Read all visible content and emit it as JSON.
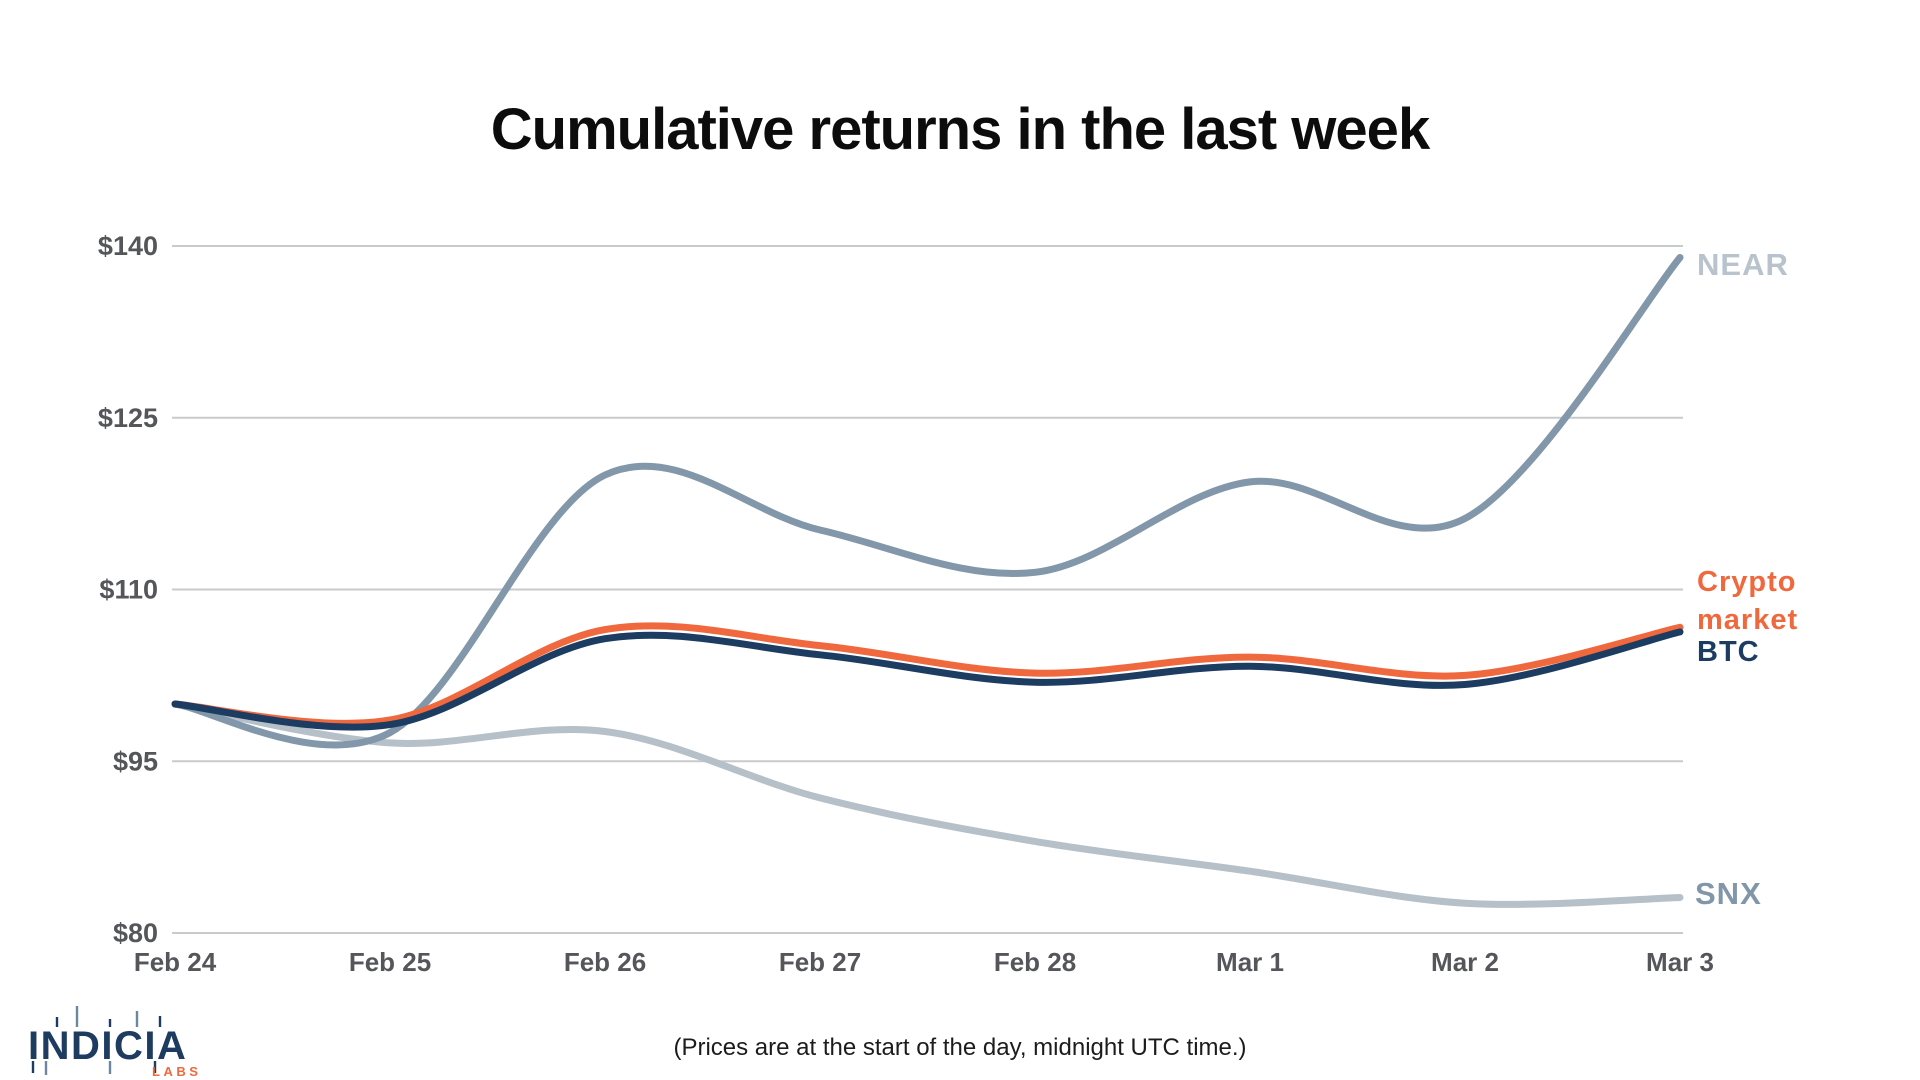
{
  "title": "Cumulative returns in the last week",
  "footnote": "(Prices are at the start of the day, midnight UTC time.)",
  "logo": {
    "name": "INDICIA",
    "sub": "LABS"
  },
  "colors": {
    "grid": "#c9cacb",
    "axis_text": "#55565a",
    "title_text": "#0c0c0d",
    "logo_navy": "#1e3b60",
    "logo_orange": "#ee6a3e"
  },
  "chart_data": {
    "type": "line",
    "x": [
      "Feb 24",
      "Feb 25",
      "Feb 26",
      "Feb 27",
      "Feb 28",
      "Mar 1",
      "Mar 2",
      "Mar 3"
    ],
    "yticks": [
      80,
      95,
      110,
      125,
      140
    ],
    "ytick_labels": [
      "$80",
      "$95",
      "$110",
      "$125",
      "$140"
    ],
    "ylim": [
      80,
      140
    ],
    "grid": true,
    "legend_position": "right-of-line-ends",
    "smoothing": "spline",
    "series": [
      {
        "name": "SNX",
        "color": "#b6c0c9",
        "label_color": "#8197a9",
        "values": [
          100,
          96.6,
          97.6,
          91.8,
          88.0,
          85.4,
          82.6,
          83.1
        ]
      },
      {
        "name": "NEAR",
        "color": "#8297aa",
        "label_color": "#b8c3ce",
        "values": [
          100,
          97.5,
          120.0,
          115.2,
          111.5,
          119.4,
          116.2,
          139.0
        ]
      },
      {
        "name": "Crypto market",
        "color": "#f0693e",
        "label_color": "#f0693e",
        "values": [
          100,
          98.6,
          106.5,
          105.1,
          102.7,
          104.1,
          102.5,
          106.7
        ]
      },
      {
        "name": "BTC",
        "color": "#1d3c61",
        "label_color": "#1d3c61",
        "values": [
          100,
          98.2,
          105.7,
          104.3,
          101.9,
          103.3,
          101.7,
          106.3
        ]
      }
    ]
  }
}
